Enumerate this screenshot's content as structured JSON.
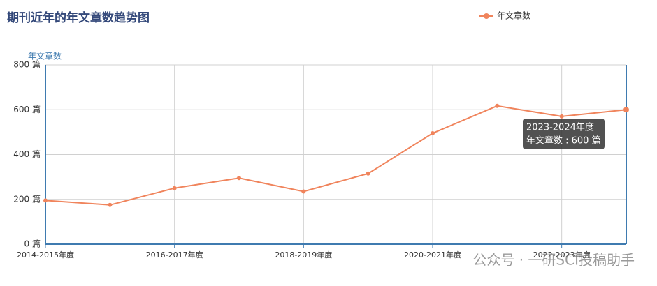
{
  "chart_data": {
    "type": "line",
    "title": "期刊近年的年文章数趋势图",
    "y_axis_label": "年文章数",
    "categories": [
      "2014-2015年度",
      null,
      "2016-2017年度",
      null,
      "2018-2019年度",
      null,
      "2020-2021年度",
      null,
      "2022-2023年度",
      null
    ],
    "series": [
      {
        "name": "年文章数",
        "color": "#f0845c",
        "values": [
          195,
          175,
          250,
          295,
          235,
          315,
          495,
          617,
          570,
          600
        ]
      }
    ],
    "ylim": [
      0,
      800
    ],
    "yticks": [
      {
        "value": 0,
        "label": "0 篇"
      },
      {
        "value": 200,
        "label": "200 篇"
      },
      {
        "value": 400,
        "label": "400 篇"
      },
      {
        "value": 600,
        "label": "600 篇"
      },
      {
        "value": 800,
        "label": "800 篇"
      }
    ],
    "grid": true,
    "legend": "top-right",
    "tooltip": {
      "index": 9,
      "lines": [
        "2023-2024年度",
        "年文章数 : 600 篇"
      ]
    },
    "watermark": "公众号 · 一研SCI投稿助手"
  }
}
